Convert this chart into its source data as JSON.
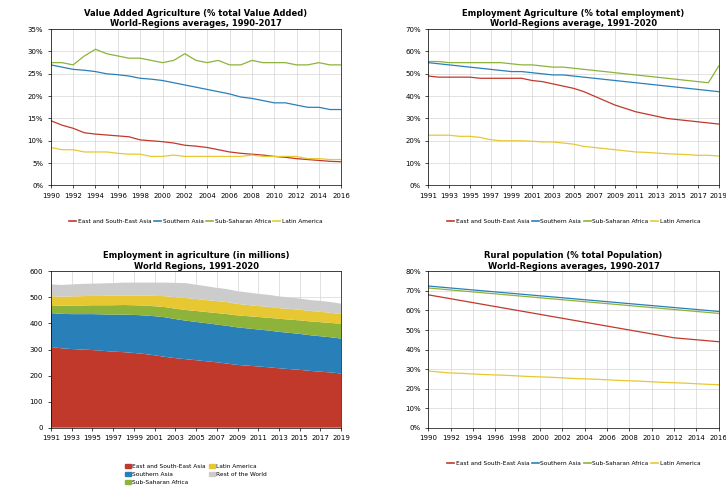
{
  "colors": {
    "east_sea_asia": "#c0392b",
    "southern_asia": "#2980b9",
    "sub_saharan": "#8db33a",
    "latin_america": "#e8c832",
    "rest_world": "#cccccc"
  },
  "panel1": {
    "title": "Value Added Agriculture (% total Value Added)",
    "subtitle": "World-Regions averages, 1990-2017",
    "years": [
      1990,
      1991,
      1992,
      1993,
      1994,
      1995,
      1996,
      1997,
      1998,
      1999,
      2000,
      2001,
      2002,
      2003,
      2004,
      2005,
      2006,
      2007,
      2008,
      2009,
      2010,
      2011,
      2012,
      2013,
      2014,
      2015,
      2016,
      2017
    ],
    "east_sea_asia": [
      14.5,
      13.5,
      12.8,
      11.8,
      11.5,
      11.3,
      11.1,
      10.9,
      10.2,
      10.0,
      9.8,
      9.5,
      9.0,
      8.8,
      8.5,
      8.0,
      7.5,
      7.2,
      7.0,
      6.8,
      6.5,
      6.3,
      6.0,
      5.8,
      5.6,
      5.4,
      5.3,
      5.2
    ],
    "southern_asia": [
      27.0,
      26.5,
      26.0,
      25.8,
      25.5,
      25.0,
      24.8,
      24.5,
      24.0,
      23.8,
      23.5,
      23.0,
      22.5,
      22.0,
      21.5,
      21.0,
      20.5,
      19.8,
      19.5,
      19.0,
      18.5,
      18.5,
      18.0,
      17.5,
      17.5,
      17.0,
      17.0,
      16.8
    ],
    "sub_saharan": [
      27.5,
      27.5,
      27.0,
      29.0,
      30.5,
      29.5,
      29.0,
      28.5,
      28.5,
      28.0,
      27.5,
      28.0,
      29.5,
      28.0,
      27.5,
      28.0,
      27.0,
      27.0,
      28.0,
      27.5,
      27.5,
      27.5,
      27.0,
      27.0,
      27.5,
      27.0,
      27.0,
      27.0
    ],
    "latin_america": [
      8.5,
      8.0,
      8.0,
      7.5,
      7.5,
      7.5,
      7.2,
      7.0,
      7.0,
      6.5,
      6.5,
      6.8,
      6.5,
      6.5,
      6.5,
      6.5,
      6.5,
      6.5,
      6.8,
      6.5,
      6.5,
      6.5,
      6.5,
      6.0,
      6.0,
      5.8,
      5.8,
      5.8
    ],
    "ylim": [
      0,
      35
    ],
    "yticks": [
      0,
      5,
      10,
      15,
      20,
      25,
      30,
      35
    ],
    "xticks": [
      1990,
      1992,
      1994,
      1996,
      1998,
      2000,
      2002,
      2004,
      2006,
      2008,
      2010,
      2012,
      2014,
      2016
    ]
  },
  "panel2": {
    "title": "Employment Agriculture (% total employment)",
    "subtitle": "World-Regions average, 1991-2020",
    "years": [
      1991,
      1992,
      1993,
      1994,
      1995,
      1996,
      1997,
      1998,
      1999,
      2000,
      2001,
      2002,
      2003,
      2004,
      2005,
      2006,
      2007,
      2008,
      2009,
      2010,
      2011,
      2012,
      2013,
      2014,
      2015,
      2016,
      2017,
      2018,
      2019,
      2020
    ],
    "east_sea_asia": [
      49.0,
      48.5,
      48.5,
      48.5,
      48.5,
      48.0,
      48.0,
      48.0,
      48.0,
      48.0,
      47.0,
      46.5,
      45.5,
      44.5,
      43.5,
      42.0,
      40.0,
      38.0,
      36.0,
      34.5,
      33.0,
      32.0,
      31.0,
      30.0,
      29.5,
      29.0,
      28.5,
      28.0,
      27.5,
      27.0
    ],
    "southern_asia": [
      55.0,
      54.5,
      54.0,
      53.5,
      53.0,
      52.5,
      52.0,
      51.5,
      51.0,
      51.0,
      50.5,
      50.0,
      49.5,
      49.5,
      49.0,
      48.5,
      48.0,
      47.5,
      47.0,
      46.5,
      46.0,
      45.5,
      45.0,
      44.5,
      44.0,
      43.5,
      43.0,
      42.5,
      42.0,
      41.5
    ],
    "sub_saharan": [
      55.5,
      55.5,
      55.0,
      55.0,
      55.0,
      55.0,
      55.0,
      55.0,
      54.5,
      54.0,
      54.0,
      53.5,
      53.0,
      53.0,
      52.5,
      52.0,
      51.5,
      51.0,
      50.5,
      50.0,
      49.5,
      49.0,
      48.5,
      48.0,
      47.5,
      47.0,
      46.5,
      46.0,
      53.5,
      53.0
    ],
    "latin_america": [
      22.5,
      22.5,
      22.5,
      22.0,
      22.0,
      21.5,
      20.5,
      20.0,
      20.0,
      20.0,
      19.8,
      19.5,
      19.5,
      19.0,
      18.5,
      17.5,
      17.0,
      16.5,
      16.0,
      15.5,
      15.0,
      14.8,
      14.5,
      14.2,
      14.0,
      13.8,
      13.5,
      13.5,
      13.2,
      13.0
    ],
    "ylim": [
      0,
      70
    ],
    "yticks": [
      0,
      10,
      20,
      30,
      40,
      50,
      60,
      70
    ],
    "xticks": [
      1991,
      1993,
      1995,
      1997,
      1999,
      2001,
      2003,
      2005,
      2007,
      2009,
      2011,
      2013,
      2015,
      2017,
      2019
    ]
  },
  "panel3": {
    "title": "Employment in agriculture (in millions)",
    "subtitle": "World Regions, 1991-2020",
    "years": [
      1991,
      1992,
      1993,
      1994,
      1995,
      1996,
      1997,
      1998,
      1999,
      2000,
      2001,
      2002,
      2003,
      2004,
      2005,
      2006,
      2007,
      2008,
      2009,
      2010,
      2011,
      2012,
      2013,
      2014,
      2015,
      2016,
      2017,
      2018,
      2019,
      2020
    ],
    "east_sea_asia": [
      310,
      305,
      302,
      300,
      298,
      295,
      292,
      290,
      287,
      283,
      278,
      272,
      267,
      263,
      259,
      255,
      251,
      246,
      241,
      238,
      235,
      232,
      228,
      225,
      222,
      218,
      215,
      212,
      208,
      205
    ],
    "southern_asia": [
      130,
      132,
      134,
      136,
      138,
      140,
      142,
      144,
      146,
      148,
      150,
      152,
      150,
      148,
      147,
      146,
      145,
      145,
      144,
      143,
      142,
      141,
      140,
      139,
      138,
      137,
      136,
      135,
      134,
      133
    ],
    "sub_saharan": [
      30,
      31,
      32,
      33,
      34,
      35,
      36,
      37,
      37,
      38,
      38,
      39,
      40,
      41,
      42,
      43,
      44,
      45,
      46,
      47,
      48,
      49,
      50,
      51,
      52,
      53,
      54,
      55,
      56,
      57
    ],
    "latin_america": [
      35,
      35,
      36,
      36,
      36,
      36,
      37,
      37,
      37,
      38,
      40,
      42,
      44,
      46,
      46,
      46,
      46,
      46,
      44,
      43,
      42,
      42,
      41,
      41,
      41,
      40,
      40,
      39,
      38,
      37
    ],
    "rest_world": [
      45,
      45,
      46,
      47,
      47,
      48,
      48,
      49,
      50,
      50,
      51,
      52,
      55,
      57,
      55,
      53,
      51,
      50,
      49,
      48,
      47,
      46,
      45,
      44,
      43,
      42,
      42,
      41,
      40,
      39
    ],
    "ylim": [
      0,
      600
    ],
    "yticks": [
      0,
      100,
      200,
      300,
      400,
      500,
      600
    ],
    "xticks": [
      1991,
      1993,
      1995,
      1997,
      1999,
      2001,
      2003,
      2005,
      2007,
      2009,
      2011,
      2013,
      2015,
      2017,
      2019
    ]
  },
  "panel4": {
    "title": "Rural population (% total Population)",
    "subtitle": "World-Regions averages, 1990-2017",
    "years": [
      1990,
      1991,
      1992,
      1993,
      1994,
      1995,
      1996,
      1997,
      1998,
      1999,
      2000,
      2001,
      2002,
      2003,
      2004,
      2005,
      2006,
      2007,
      2008,
      2009,
      2010,
      2011,
      2012,
      2013,
      2014,
      2015,
      2016,
      2017
    ],
    "east_sea_asia": [
      68.0,
      67.0,
      66.0,
      65.0,
      64.0,
      63.0,
      62.0,
      61.0,
      60.0,
      59.0,
      58.0,
      57.0,
      56.0,
      55.0,
      54.0,
      53.0,
      52.0,
      51.0,
      50.0,
      49.0,
      48.0,
      47.0,
      46.0,
      45.5,
      45.0,
      44.5,
      44.0,
      43.5
    ],
    "southern_asia": [
      72.5,
      72.0,
      71.5,
      71.0,
      70.5,
      70.0,
      69.5,
      69.0,
      68.5,
      68.0,
      67.5,
      67.0,
      66.5,
      66.0,
      65.5,
      65.0,
      64.5,
      64.0,
      63.5,
      63.0,
      62.5,
      62.0,
      61.5,
      61.0,
      60.5,
      60.0,
      59.5,
      59.0
    ],
    "sub_saharan": [
      71.5,
      71.0,
      70.5,
      70.0,
      69.5,
      69.0,
      68.5,
      68.0,
      67.5,
      67.0,
      66.5,
      66.0,
      65.5,
      65.0,
      64.5,
      64.0,
      63.5,
      63.0,
      62.5,
      62.0,
      61.5,
      61.0,
      60.5,
      60.0,
      59.5,
      59.0,
      58.5,
      58.0
    ],
    "latin_america": [
      29.0,
      28.5,
      28.0,
      27.8,
      27.5,
      27.2,
      27.0,
      26.8,
      26.5,
      26.2,
      26.0,
      25.8,
      25.5,
      25.2,
      25.0,
      24.8,
      24.5,
      24.2,
      24.0,
      23.8,
      23.5,
      23.2,
      23.0,
      22.8,
      22.5,
      22.2,
      22.0,
      21.8
    ],
    "ylim": [
      0,
      80
    ],
    "yticks": [
      0,
      10,
      20,
      30,
      40,
      50,
      60,
      70,
      80
    ],
    "xticks": [
      1990,
      1992,
      1994,
      1996,
      1998,
      2000,
      2002,
      2004,
      2006,
      2008,
      2010,
      2012,
      2014,
      2016
    ]
  }
}
